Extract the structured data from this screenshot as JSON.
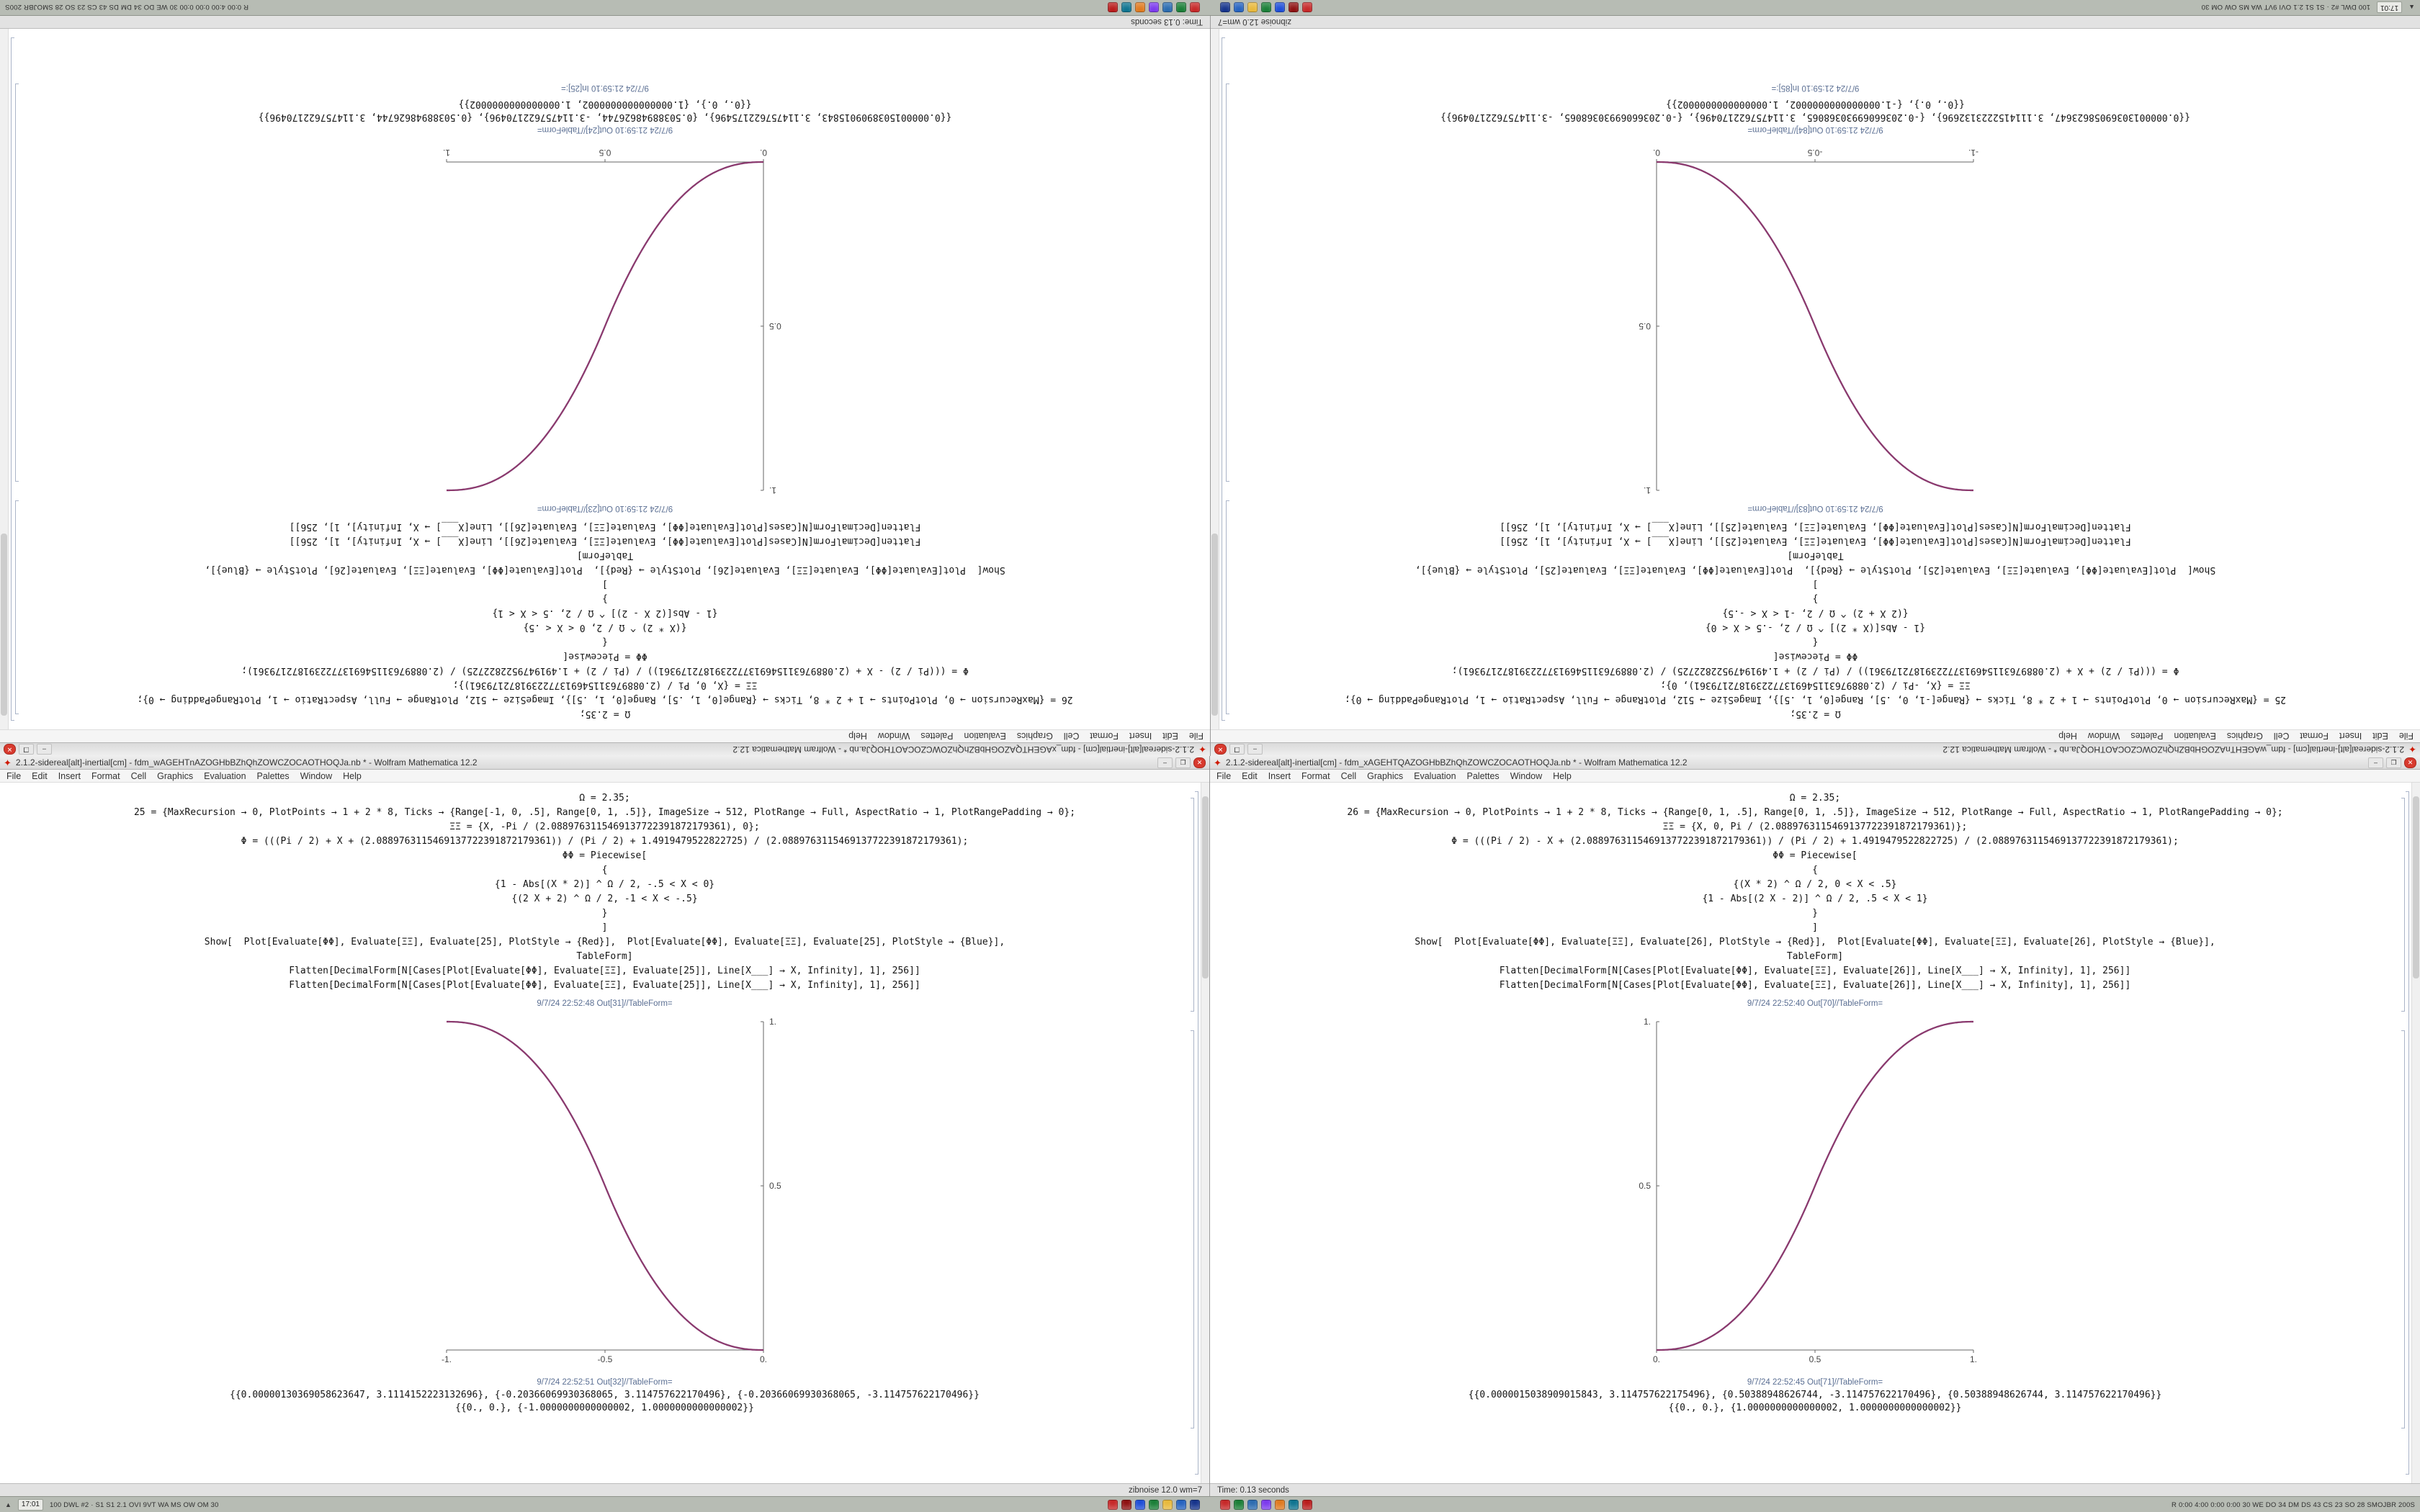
{
  "meta": {
    "app_title_suffix": "Wolfram Mathematica 12.2"
  },
  "colors": {
    "curve_red": "#cf2a27",
    "curve_blue": "#3b4cc0",
    "mathematica_red": "#cf1b00",
    "titlebar_bg": "#e3e3e3",
    "taskbar_bg": "#b7bcb4",
    "status_bg": "#e2e2e2"
  },
  "window_controls": {
    "minimize": "–",
    "maximize": "❐",
    "close": "✕"
  },
  "menu": [
    "File",
    "Edit",
    "Insert",
    "Format",
    "Cell",
    "Graphics",
    "Evaluation",
    "Palettes",
    "Window",
    "Help"
  ],
  "taskbar": {
    "arrow": "▲",
    "clock": "17:01",
    "left_stats": "100 DWL #2 · S1 S1 2.1 OVI 9VT WA MS OW OM 30",
    "right_stats": "R 0:00 4:00 0:00 0:00 30 WE DO 34 DM DS 43 CS 23 SO 28 SMOJBR 200S",
    "icon_groups": [
      [
        "#c62828",
        "#8e1111",
        "#1d4ed8",
        "#1a7f37",
        "#e8b93c",
        "#2563c0",
        "#16348c"
      ],
      [
        "#c62828",
        "#1a7f37",
        "#2b6cb0",
        "#7c3aed",
        "#e07a1f",
        "#0e7490",
        "#b91c1c"
      ]
    ]
  },
  "chart_data": [
    {
      "type": "line",
      "title": "Piecewise smoothstep plot (right notebooks)",
      "x_range": [
        0,
        1
      ],
      "y_range": [
        0,
        1
      ],
      "xticks": [
        "0.",
        "0.5",
        "1."
      ],
      "yticks": [
        "0.5",
        "1."
      ],
      "series": [
        {
          "name": "PlotStyle Red",
          "color": "#cf2a27",
          "shape": "increasing sigmoid (2x)^2.35/2 then 1-(2-2x)^2.35/2"
        },
        {
          "name": "PlotStyle Blue",
          "color": "#3b4cc0",
          "shape": "same curve overlapping"
        }
      ],
      "legend": "none",
      "grid": false
    },
    {
      "type": "line",
      "title": "Piecewise smoothstep plot (left notebooks)",
      "x_range": [
        -1,
        0
      ],
      "y_range": [
        0,
        1
      ],
      "xticks": [
        "-1.",
        "-0.5",
        "0."
      ],
      "yticks": [
        "0.5",
        "1."
      ],
      "series": [
        {
          "name": "PlotStyle Red",
          "color": "#cf2a27",
          "shape": "decreasing sigmoid from (-1,1) to (0,0), exponent 2.35"
        },
        {
          "name": "PlotStyle Blue",
          "color": "#3b4cc0",
          "shape": "same curve overlapping"
        }
      ],
      "legend": "none",
      "grid": false
    }
  ],
  "halves": {
    "bottom": {
      "left_window": {
        "title": "2.1.2-sidereal[alt]-inertial[cm] - fdm_wAGEHTnAZOGHbBZhQhZOWCZOCAOTHOQJa.nb * - Wolfram Mathematica 12.2",
        "status": "zibnoise 12.0 wm=7",
        "cells": [
          "Ω = 2.35;",
          "25 = {MaxRecursion → 0, PlotPoints → 1 + 2 * 8, Ticks → {Range[-1, 0, .5], Range[0, 1, .5]}, ImageSize → 512, PlotRange → Full, AspectRatio → 1, PlotRangePadding → 0};",
          "ΞΞ = {X, -Pi / (2.0889763115469137722391872179361), 0};",
          "Φ = (((Pi / 2) + X + (2.0889763115469137722391872179361)) / (Pi / 2) + 1.4919479522822725) / (2.0889763115469137722391872179361);",
          "ΦΦ = Piecewise[",
          "{",
          "{1 - Abs[(X * 2)] ^ Ω / 2, -.5 < X < 0}",
          "{(2 X + 2) ^ Ω / 2, -1 < X < -.5}",
          "}",
          "]",
          "Show[  Plot[Evaluate[ΦΦ], Evaluate[ΞΞ], Evaluate[25], PlotStyle → {Red}],  Plot[Evaluate[ΦΦ], Evaluate[ΞΞ], Evaluate[25], PlotStyle → {Blue}],",
          "TableForm]",
          "Flatten[DecimalForm[N[Cases[Plot[Evaluate[ΦΦ], Evaluate[ΞΞ], Evaluate[25]], Line[X___] → X, Infinity], 1], 256]]",
          "Flatten[DecimalForm[N[Cases[Plot[Evaluate[ΦΦ], Evaluate[ΞΞ], Evaluate[25]], Line[X___] → X, Infinity], 1], 256]]"
        ],
        "out_label_1": "9/7/24 22:52:48 Out[31]//TableForm=",
        "out_label_2": "9/7/24 22:52:51 Out[32]//TableForm=",
        "trailing_label": "",
        "result_lines": [
          "{{0.00000130369058623647, 3.1114152223132696}, {-0.20366069930368065, 3.114757622170496}, {-0.20366069930368065, -3.114757622170496}}",
          "{{0., 0.}, {-1.0000000000000002, 1.0000000000000002}}"
        ],
        "plot": {
          "xmin": -1,
          "xmax": 0,
          "ymin": 0,
          "ymax": 1,
          "exponent": 2.35,
          "direction": "dec",
          "xticks": [
            {
              "v": -1,
              "l": "-1."
            },
            {
              "v": -0.5,
              "l": "-0.5"
            },
            {
              "v": 0,
              "l": "0."
            }
          ],
          "yticks": [
            {
              "v": 0.5,
              "l": "0.5"
            },
            {
              "v": 1,
              "l": "1."
            }
          ]
        }
      },
      "right_window": {
        "title": "2.1.2-sidereal[alt]-inertial[cm] - fdm_xAGEHTQAZOGHbBZhQhZOWCZOCAOTHOQJa.nb * - Wolfram Mathematica 12.2",
        "status": "Time: 0.13 seconds",
        "cells": [
          "Ω = 2.35;",
          "26 = {MaxRecursion → 0, PlotPoints → 1 + 2 * 8, Ticks → {Range[0, 1, .5], Range[0, 1, .5]}, ImageSize → 512, PlotRange → Full, AspectRatio → 1, PlotRangePadding → 0};",
          "ΞΞ = {X, 0, Pi / (2.0889763115469137722391872179361)};",
          "Φ = (((Pi / 2) - X + (2.0889763115469137722391872179361)) / (Pi / 2) + 1.4919479522822725) / (2.0889763115469137722391872179361);",
          "ΦΦ = Piecewise[",
          "{",
          "{(X * 2) ^ Ω / 2, 0 < X < .5}",
          "{1 - Abs[(2 X - 2)] ^ Ω / 2, .5 < X < 1}",
          "}",
          "]",
          "Show[  Plot[Evaluate[ΦΦ], Evaluate[ΞΞ], Evaluate[26], PlotStyle → {Red}],  Plot[Evaluate[ΦΦ], Evaluate[ΞΞ], Evaluate[26], PlotStyle → {Blue}],",
          "TableForm]",
          "Flatten[DecimalForm[N[Cases[Plot[Evaluate[ΦΦ], Evaluate[ΞΞ], Evaluate[26]], Line[X___] → X, Infinity], 1], 256]]",
          "Flatten[DecimalForm[N[Cases[Plot[Evaluate[ΦΦ], Evaluate[ΞΞ], Evaluate[26]], Line[X___] → X, Infinity], 1], 256]]"
        ],
        "out_label_1": "9/7/24 22:52:40 Out[70]//TableForm=",
        "out_label_2": "9/7/24 22:52:45 Out[71]//TableForm=",
        "trailing_label": "",
        "result_lines": [
          "{{0.0000015038909015843, 3.114757622175496}, {0.50388948626744, -3.114757622170496}, {0.50388948626744, 3.114757622170496}}",
          "{{0., 0.}, {1.0000000000000002, 1.0000000000000002}}"
        ],
        "plot": {
          "xmin": 0,
          "xmax": 1,
          "ymin": 0,
          "ymax": 1,
          "exponent": 2.35,
          "direction": "inc",
          "xticks": [
            {
              "v": 0,
              "l": "0."
            },
            {
              "v": 0.5,
              "l": "0.5"
            },
            {
              "v": 1,
              "l": "1."
            }
          ],
          "yticks": [
            {
              "v": 0.5,
              "l": "0.5"
            },
            {
              "v": 1,
              "l": "1."
            }
          ]
        }
      }
    },
    "top": {
      "left_window": {
        "title": "2.1.2-sidereal[alt]-inertial[cm] - fdm_wAGEHTnAZOGHbBZhQhZOWCZOCAOTHOQJa.nb * - Wolfram Mathematica 12.2",
        "status": "zibnoise 12.0 wm=7",
        "cells": [
          "Ω = 2.35;",
          "25 = {MaxRecursion → 0, PlotPoints → 1 + 2 * 8, Ticks → {Range[-1, 0, .5], Range[0, 1, .5]}, ImageSize → 512, PlotRange → Full, AspectRatio → 1, PlotRangePadding → 0};",
          "ΞΞ = {X, -Pi / (2.0889763115469137722391872179361), 0};",
          "Φ = (((Pi / 2) + X + (2.0889763115469137722391872179361)) / (Pi / 2) + 1.4919479522822725) / (2.0889763115469137722391872179361);",
          "ΦΦ = Piecewise[",
          "{",
          "{1 - Abs[(X * 2)] ^ Ω / 2, -.5 < X < 0}",
          "{(2 X + 2) ^ Ω / 2, -1 < X < -.5}",
          "}",
          "]",
          "Show[  Plot[Evaluate[ΦΦ], Evaluate[ΞΞ], Evaluate[25], PlotStyle → {Red}],  Plot[Evaluate[ΦΦ], Evaluate[ΞΞ], Evaluate[25], PlotStyle → {Blue}],",
          "TableForm]",
          "Flatten[DecimalForm[N[Cases[Plot[Evaluate[ΦΦ], Evaluate[ΞΞ], Evaluate[25]], Line[X___] → X, Infinity], 1], 256]]",
          "Flatten[DecimalForm[N[Cases[Plot[Evaluate[ΦΦ], Evaluate[ΞΞ], Evaluate[25]], Line[X___] → X, Infinity], 1], 256]]"
        ],
        "out_label_1": "9/7/24 21:59:10 Out[83]//TableForm=",
        "out_label_2": "9/7/24 21:59:10 Out[84]//TableForm=",
        "trailing_label": "9/7/24 21:59:10 In[85]:=",
        "result_lines": [
          "{{0.00000130369058623647, 3.1114152223132696}, {-0.20366069930368065, 3.114757622170496}, {-0.20366069930368065, -3.114757622170496}}",
          "{{0., 0.}, {-1.0000000000000002, 1.0000000000000002}}"
        ],
        "plot": {
          "xmin": -1,
          "xmax": 0,
          "ymin": 0,
          "ymax": 1,
          "exponent": 2.35,
          "direction": "dec",
          "xticks": [
            {
              "v": -1,
              "l": "-1."
            },
            {
              "v": -0.5,
              "l": "-0.5"
            },
            {
              "v": 0,
              "l": "0."
            }
          ],
          "yticks": [
            {
              "v": 0.5,
              "l": "0.5"
            },
            {
              "v": 1,
              "l": "1."
            }
          ]
        }
      },
      "right_window": {
        "title": "2.1.2-sidereal[alt]-inertial[cm] - fdm_xAGEHTQAZOGHbBZhQhZOWCZOCAOTHOQJa.nb * - Wolfram Mathematica 12.2",
        "status": "Time: 0.13 seconds",
        "cells": [
          "Ω = 2.35;",
          "26 = {MaxRecursion → 0, PlotPoints → 1 + 2 * 8, Ticks → {Range[0, 1, .5], Range[0, 1, .5]}, ImageSize → 512, PlotRange → Full, AspectRatio → 1, PlotRangePadding → 0};",
          "ΞΞ = {X, 0, Pi / (2.0889763115469137722391872179361)};",
          "Φ = (((Pi / 2) - X + (2.0889763115469137722391872179361)) / (Pi / 2) + 1.4919479522822725) / (2.0889763115469137722391872179361);",
          "ΦΦ = Piecewise[",
          "{",
          "{(X * 2) ^ Ω / 2, 0 < X < .5}",
          "{1 - Abs[(2 X - 2)] ^ Ω / 2, .5 < X < 1}",
          "}",
          "]",
          "Show[  Plot[Evaluate[ΦΦ], Evaluate[ΞΞ], Evaluate[26], PlotStyle → {Red}],  Plot[Evaluate[ΦΦ], Evaluate[ΞΞ], Evaluate[26], PlotStyle → {Blue}],",
          "TableForm]",
          "Flatten[DecimalForm[N[Cases[Plot[Evaluate[ΦΦ], Evaluate[ΞΞ], Evaluate[26]], Line[X___] → X, Infinity], 1], 256]]",
          "Flatten[DecimalForm[N[Cases[Plot[Evaluate[ΦΦ], Evaluate[ΞΞ], Evaluate[26]], Line[X___] → X, Infinity], 1], 256]]"
        ],
        "out_label_1": "9/7/24 21:59:10 Out[23]//TableForm=",
        "out_label_2": "9/7/24 21:59:10 Out[24]//TableForm=",
        "trailing_label": "9/7/24 21:59:10 In[25]:=",
        "result_lines": [
          "{{0.0000015038909015843, 3.114757622175496}, {0.50388948626744, -3.114757622170496}, {0.50388948626744, 3.114757622170496}}",
          "{{0., 0.}, {1.0000000000000002, 1.0000000000000002}}"
        ],
        "plot": {
          "xmin": 0,
          "xmax": 1,
          "ymin": 0,
          "ymax": 1,
          "exponent": 2.35,
          "direction": "inc",
          "xticks": [
            {
              "v": 0,
              "l": "0."
            },
            {
              "v": 0.5,
              "l": "0.5"
            },
            {
              "v": 1,
              "l": "1."
            }
          ],
          "yticks": [
            {
              "v": 0.5,
              "l": "0.5"
            },
            {
              "v": 1,
              "l": "1."
            }
          ]
        }
      }
    }
  }
}
